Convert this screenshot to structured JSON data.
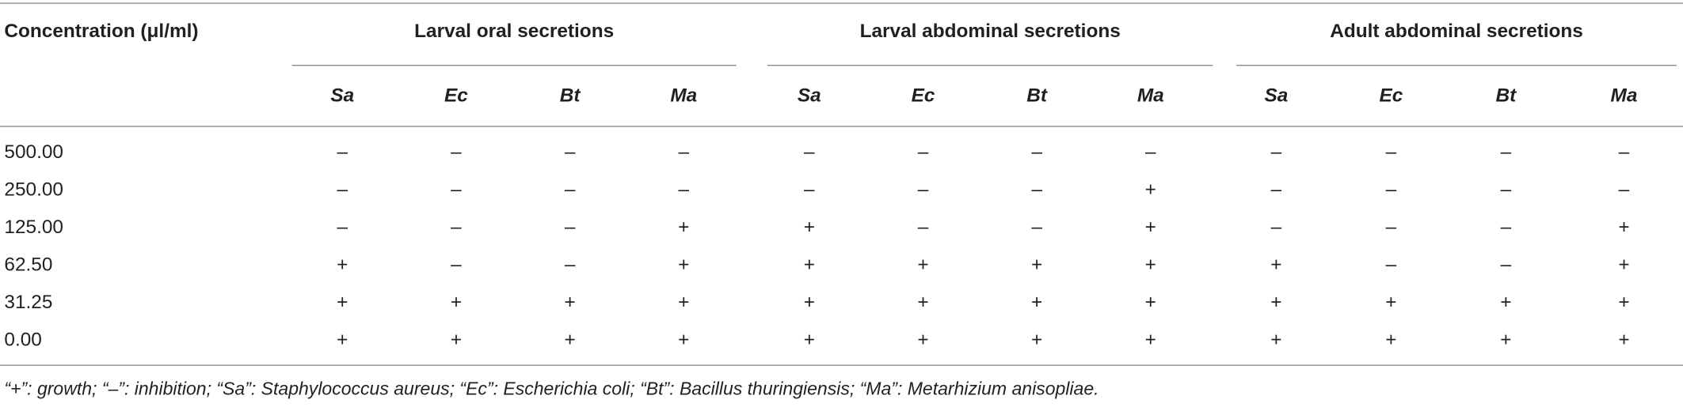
{
  "header": {
    "concentration_label": "Concentration (μl/ml)"
  },
  "groups": [
    {
      "title": "Larval oral secretions",
      "columns": [
        "Sa",
        "Ec",
        "Bt",
        "Ma"
      ]
    },
    {
      "title": "Larval abdominal secretions",
      "columns": [
        "Sa",
        "Ec",
        "Bt",
        "Ma"
      ]
    },
    {
      "title": "Adult abdominal secretions",
      "columns": [
        "Sa",
        "Ec",
        "Bt",
        "Ma"
      ]
    }
  ],
  "rows": [
    {
      "concentration": "500.00",
      "cells": [
        "–",
        "–",
        "–",
        "–",
        "–",
        "–",
        "–",
        "–",
        "–",
        "–",
        "–",
        "–"
      ]
    },
    {
      "concentration": "250.00",
      "cells": [
        "–",
        "–",
        "–",
        "–",
        "–",
        "–",
        "–",
        "+",
        "–",
        "–",
        "–",
        "–"
      ]
    },
    {
      "concentration": "125.00",
      "cells": [
        "–",
        "–",
        "–",
        "+",
        "+",
        "–",
        "–",
        "+",
        "–",
        "–",
        "–",
        "+"
      ]
    },
    {
      "concentration": "62.50",
      "cells": [
        "+",
        "–",
        "–",
        "+",
        "+",
        "+",
        "+",
        "+",
        "+",
        "–",
        "–",
        "+"
      ]
    },
    {
      "concentration": "31.25",
      "cells": [
        "+",
        "+",
        "+",
        "+",
        "+",
        "+",
        "+",
        "+",
        "+",
        "+",
        "+",
        "+"
      ]
    },
    {
      "concentration": "0.00",
      "cells": [
        "+",
        "+",
        "+",
        "+",
        "+",
        "+",
        "+",
        "+",
        "+",
        "+",
        "+",
        "+"
      ]
    }
  ],
  "footnote": "“+”: growth; “–”: inhibition; “Sa”: Staphylococcus aureus; “Ec”: Escherichia coli; “Bt”: Bacillus thuringiensis; “Ma”: Metarhizium anisopliae."
}
